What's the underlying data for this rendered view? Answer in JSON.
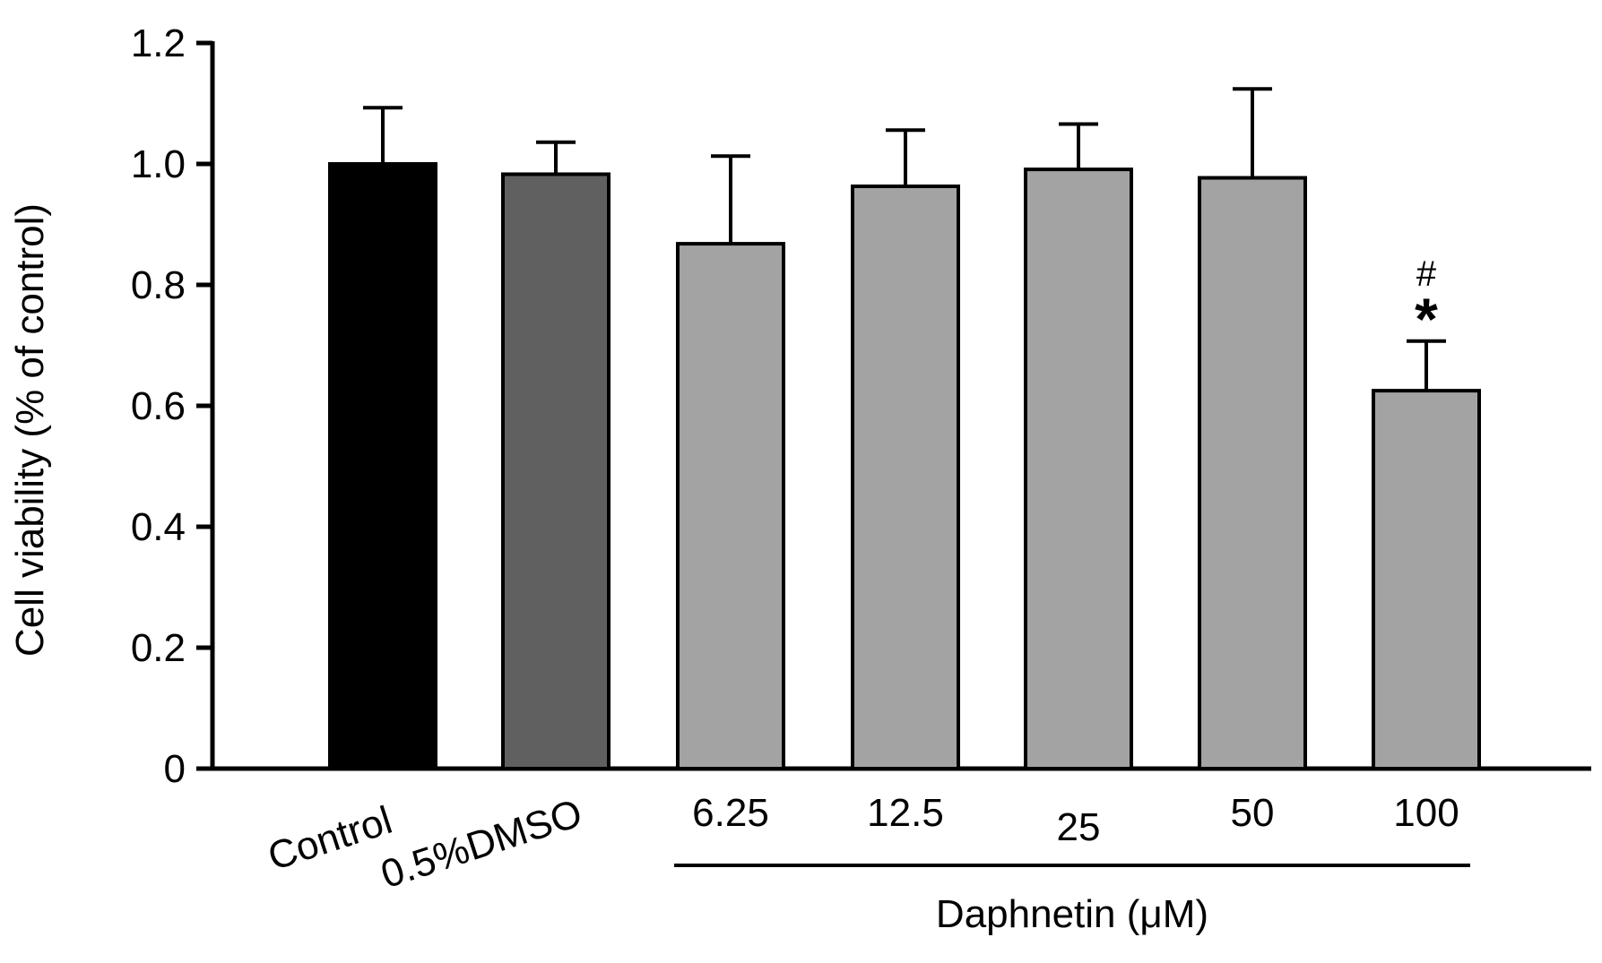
{
  "chart_data": {
    "type": "bar",
    "title": "",
    "xlabel": "",
    "ylabel": "Cell viability (% of control)",
    "ylim": [
      0,
      1.2
    ],
    "yticks": [
      0,
      0.2,
      0.4,
      0.6,
      0.8,
      1.0,
      1.2
    ],
    "ytick_labels": [
      "0",
      "0.2",
      "0.4",
      "0.6",
      "0.8",
      "1.0",
      "1.2"
    ],
    "grid": false,
    "categories": [
      "Control",
      "0.5%DMSO",
      "6.25",
      "12.5",
      "25",
      "50",
      "100"
    ],
    "values": [
      1.0,
      0.983,
      0.868,
      0.963,
      0.991,
      0.977,
      0.625
    ],
    "errors": [
      0.093,
      0.053,
      0.145,
      0.093,
      0.075,
      0.147,
      0.082
    ],
    "colors": [
      "#000000",
      "#606060",
      "#a3a3a3",
      "#a3a3a3",
      "#a3a3a3",
      "#a3a3a3",
      "#a3a3a3"
    ],
    "group_label": "Daphnetin (μM)",
    "annotations": [
      {
        "category": "100",
        "symbols": [
          "#",
          "*"
        ]
      }
    ]
  }
}
